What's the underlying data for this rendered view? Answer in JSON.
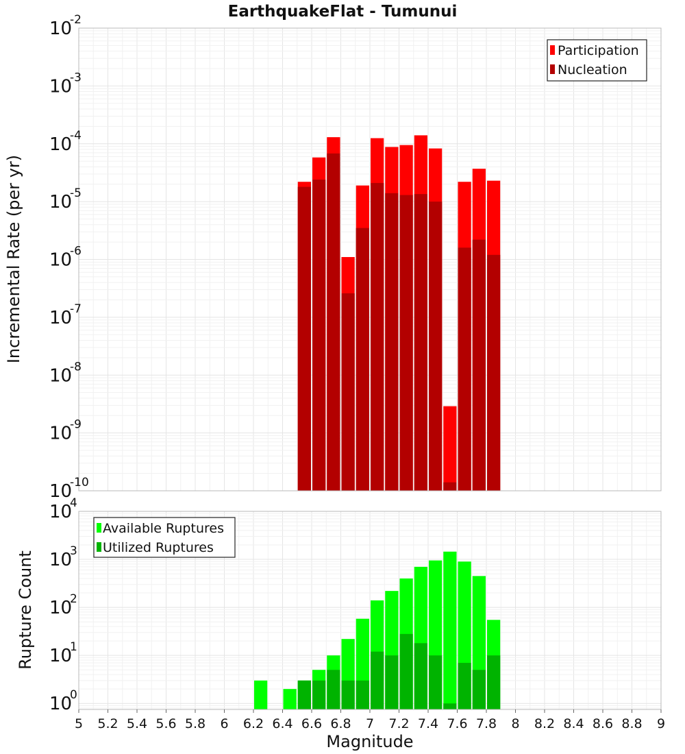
{
  "chart_data": [
    {
      "type": "bar",
      "title": "EarthquakeFlat - Tumunui",
      "xlabel": "Magnitude",
      "ylabel": "Incremental Rate (per yr)",
      "xlim": [
        5,
        9
      ],
      "xticks": [
        5,
        5.2,
        5.4,
        5.6,
        5.8,
        6,
        6.2,
        6.4,
        6.6,
        6.8,
        7,
        7.2,
        7.4,
        7.6,
        7.8,
        8,
        8.2,
        8.4,
        8.6,
        8.8,
        9
      ],
      "ylim": [
        1e-10,
        0.01
      ],
      "yscale": "log",
      "yticks": [
        {
          "base": "10",
          "exp": "-10"
        },
        {
          "base": "10",
          "exp": "-9"
        },
        {
          "base": "10",
          "exp": "-8"
        },
        {
          "base": "10",
          "exp": "-7"
        },
        {
          "base": "10",
          "exp": "-6"
        },
        {
          "base": "10",
          "exp": "-5"
        },
        {
          "base": "10",
          "exp": "-4"
        },
        {
          "base": "10",
          "exp": "-3"
        },
        {
          "base": "10",
          "exp": "-2"
        }
      ],
      "grid": true,
      "legend": "top-right",
      "x": [
        6.55,
        6.65,
        6.75,
        6.85,
        6.95,
        7.05,
        7.15,
        7.25,
        7.35,
        7.45,
        7.55,
        7.65,
        7.75,
        7.85
      ],
      "series": [
        {
          "name": "Participation",
          "color": "#ff0000",
          "values": [
            2.2e-05,
            5.8e-05,
            0.00013,
            1.1e-06,
            1.9e-05,
            0.000125,
            8.8e-05,
            9.5e-05,
            0.00014,
            8.3e-05,
            2.9e-09,
            2.2e-05,
            3.7e-05,
            2.3e-05
          ]
        },
        {
          "name": "Nucleation",
          "color": "#b30000",
          "values": [
            1.8e-05,
            2.4e-05,
            6.8e-05,
            2.6e-07,
            3.5e-06,
            2.1e-05,
            1.4e-05,
            1.3e-05,
            1.35e-05,
            1e-05,
            1.4e-10,
            1.6e-06,
            2.2e-06,
            1.2e-06
          ]
        }
      ]
    },
    {
      "type": "bar",
      "xlabel": "Magnitude",
      "ylabel": "Rupture Count",
      "xlim": [
        5,
        9
      ],
      "ylim": [
        0.75,
        10000
      ],
      "yscale": "log",
      "yticks": [
        {
          "base": "10",
          "exp": "0",
          "value": 1
        },
        {
          "base": "10",
          "exp": "1",
          "value": 10
        },
        {
          "base": "10",
          "exp": "2",
          "value": 100
        },
        {
          "base": "10",
          "exp": "3",
          "value": 1000
        },
        {
          "base": "10",
          "exp": "4",
          "value": 10000
        }
      ],
      "grid": true,
      "legend": "top-left",
      "x": [
        6.25,
        6.45,
        6.55,
        6.65,
        6.75,
        6.85,
        6.95,
        7.05,
        7.15,
        7.25,
        7.35,
        7.45,
        7.55,
        7.65,
        7.75,
        7.85
      ],
      "series": [
        {
          "name": "Available Ruptures",
          "color": "#00ff00",
          "values": [
            3,
            2,
            3,
            5,
            10,
            22,
            58,
            140,
            220,
            400,
            700,
            950,
            1450,
            900,
            450,
            55
          ]
        },
        {
          "name": "Utilized Ruptures",
          "color": "#00b300",
          "values": [
            null,
            null,
            3,
            3,
            5,
            3,
            3,
            12,
            10,
            28,
            18,
            10,
            1,
            7,
            5,
            10
          ]
        }
      ]
    }
  ]
}
